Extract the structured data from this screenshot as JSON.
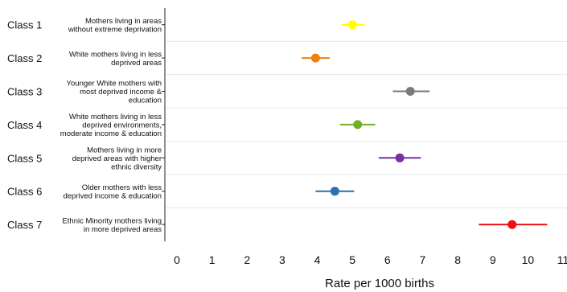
{
  "chart_data": {
    "type": "forest",
    "xlabel": "Rate per 1000 births",
    "xlim": [
      0,
      11
    ],
    "xticks": [
      0,
      1,
      2,
      3,
      4,
      5,
      6,
      7,
      8,
      9,
      10,
      11
    ],
    "grid": "horizontal",
    "rows": [
      {
        "class": "Class 1",
        "description": [
          "Mothers living in areas",
          "without extreme deprivation"
        ],
        "value": 5.0,
        "ci": [
          4.7,
          5.35
        ],
        "color": "#ffff00"
      },
      {
        "class": "Class 2",
        "description": [
          "White mothers living in less",
          "deprived areas"
        ],
        "value": 3.95,
        "ci": [
          3.55,
          4.35
        ],
        "color": "#f07f0c"
      },
      {
        "class": "Class 3",
        "description": [
          "Younger White mothers with",
          "most deprived income &",
          "education"
        ],
        "value": 6.65,
        "ci": [
          6.15,
          7.2
        ],
        "color": "#7a7a7a"
      },
      {
        "class": "Class 4",
        "description": [
          "White mothers living in less",
          "deprived environments,",
          "moderate income & education"
        ],
        "value": 5.15,
        "ci": [
          4.65,
          5.65
        ],
        "color": "#72b026"
      },
      {
        "class": "Class 5",
        "description": [
          "Mothers living in more",
          "deprived areas with higher",
          "ethnic diversity"
        ],
        "value": 6.35,
        "ci": [
          5.75,
          6.95
        ],
        "color": "#7b2fa6"
      },
      {
        "class": "Class 6",
        "description": [
          "Older mothers with less",
          "deprived income & education"
        ],
        "value": 4.5,
        "ci": [
          3.95,
          5.05
        ],
        "color": "#2f6fb0"
      },
      {
        "class": "Class 7",
        "description": [
          "Ethnic Minority mothers living",
          "in more deprived areas"
        ],
        "value": 9.55,
        "ci": [
          8.6,
          10.55
        ],
        "color": "#ee1111"
      }
    ]
  }
}
